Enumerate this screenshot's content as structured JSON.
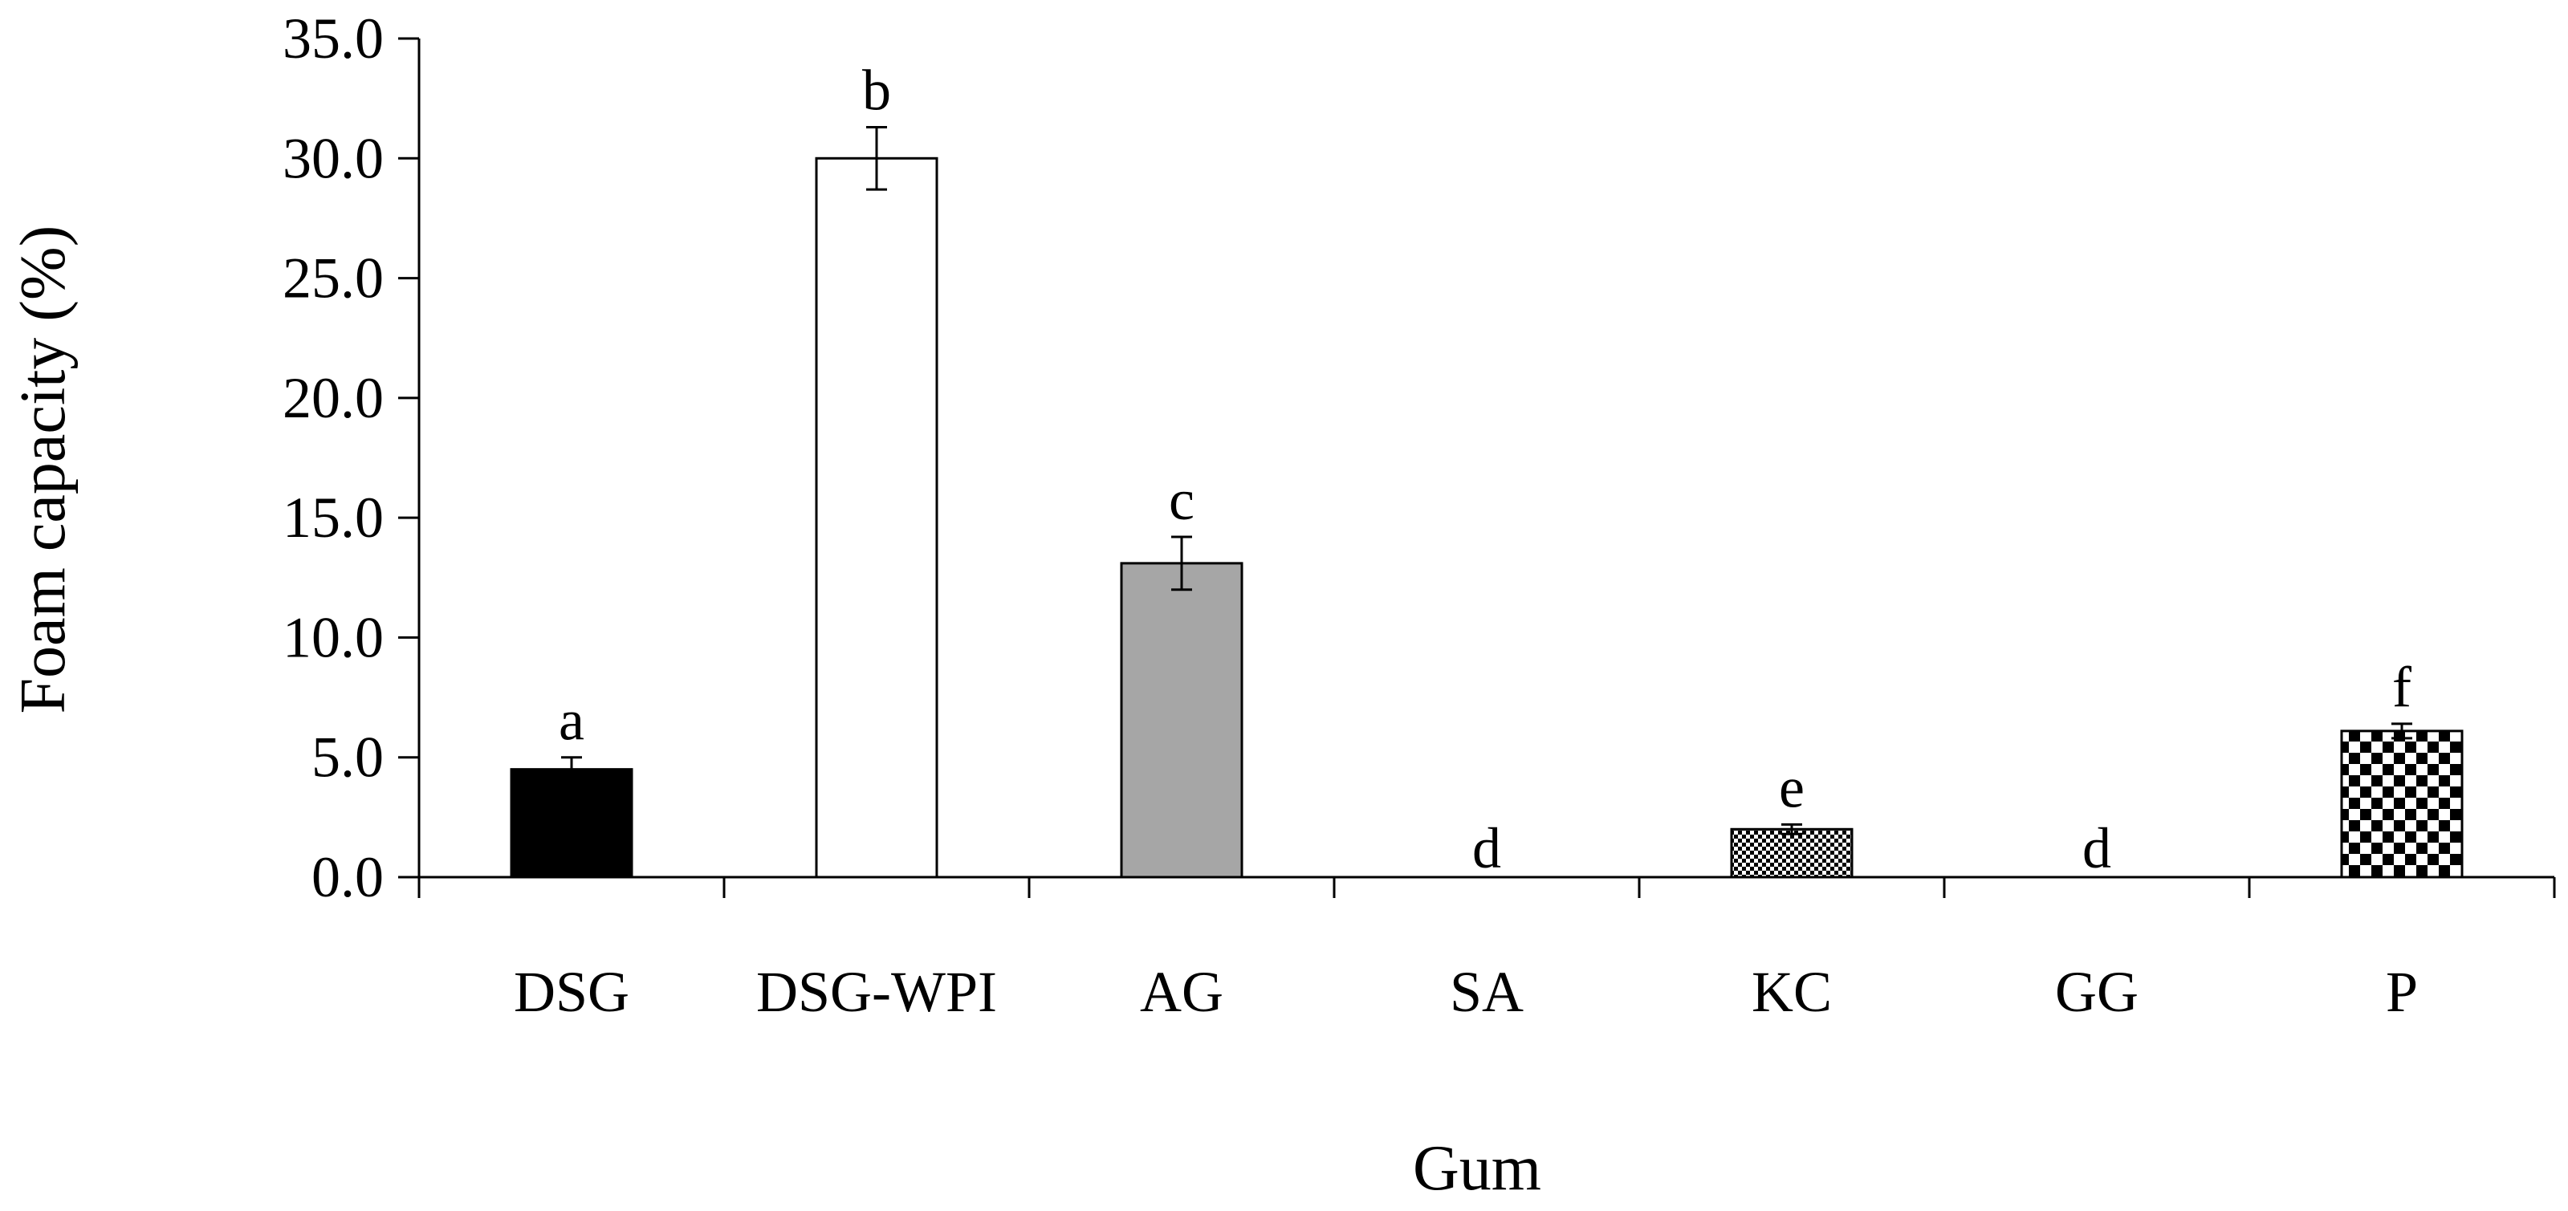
{
  "chart_data": {
    "type": "bar",
    "title": "",
    "xlabel": "Gum",
    "ylabel": "Foam capacity (%)",
    "ylim": [
      0,
      35
    ],
    "yticks": [
      "0.0",
      "5.0",
      "10.0",
      "15.0",
      "20.0",
      "25.0",
      "30.0",
      "35.0"
    ],
    "grid": false,
    "legend": "none",
    "categories": [
      "DSG",
      "DSG-WPI",
      "AG",
      "SA",
      "KC",
      "GG",
      "P"
    ],
    "values": [
      4.5,
      30.0,
      13.1,
      0.0,
      2.0,
      0.0,
      6.1
    ],
    "errors": [
      0.5,
      1.3,
      1.1,
      0.0,
      0.2,
      0.0,
      0.3
    ],
    "significance_letters": [
      "a",
      "b",
      "c",
      "d",
      "e",
      "d",
      "f"
    ],
    "fills": [
      "solid-black",
      "white",
      "gray",
      "none",
      "fine-dots",
      "none",
      "checkerboard"
    ],
    "colors": {
      "black": "#000000",
      "white": "#ffffff",
      "gray": "#a6a6a6"
    }
  }
}
